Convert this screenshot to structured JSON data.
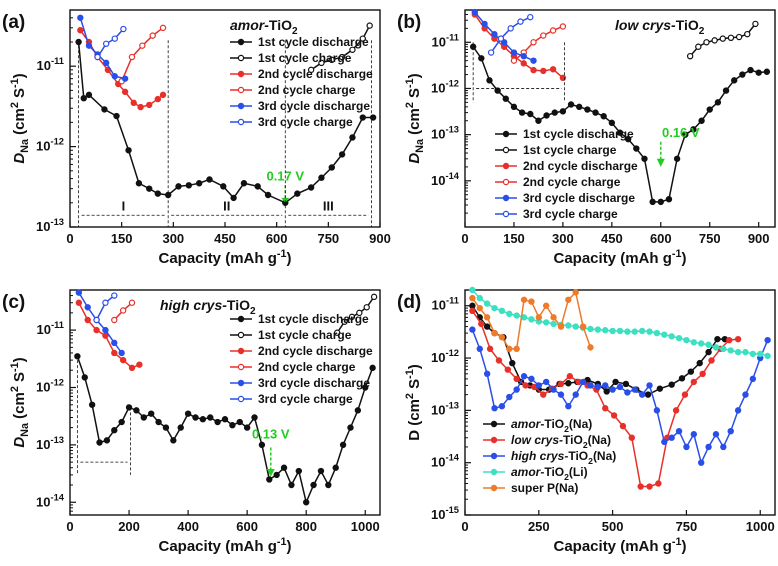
{
  "chart_data": [
    {
      "type": "line",
      "panel_label": "(a)",
      "title": "amor-TiO2",
      "xlabel": "Capacity (mAh g-1)",
      "ylabel": "DNa (cm2 S-1)",
      "xlim": [
        0,
        900
      ],
      "ylim": [
        1e-13,
        5e-11
      ],
      "yscale": "log",
      "xticks": [
        "0",
        "150",
        "300",
        "450",
        "600",
        "750",
        "900"
      ],
      "yticks": [
        "10-13",
        "10-12",
        "10-11"
      ],
      "legend_position": "top-right",
      "annotations": [
        "0.17 V",
        "I",
        "II",
        "III"
      ],
      "series": [
        {
          "name": "1st cycle discharge",
          "color": "#111111",
          "fill": "#111111",
          "x": [
            25,
            40,
            55,
            100,
            135,
            170,
            200,
            230,
            255,
            285,
            315,
            345,
            375,
            405,
            445,
            475,
            505,
            545,
            575,
            625,
            660,
            700,
            730,
            760,
            790,
            820,
            850,
            880
          ],
          "y": [
            2e-11,
            4e-12,
            4.4e-12,
            2.9e-12,
            2.4e-12,
            9e-13,
            3.5e-13,
            3e-13,
            2.6e-13,
            2.5e-13,
            3.2e-13,
            3.3e-13,
            3.5e-13,
            3.9e-13,
            3.2e-13,
            2.3e-13,
            3.5e-13,
            3.2e-13,
            2.5e-13,
            2e-13,
            2.6e-13,
            3.1e-13,
            4.1e-13,
            5.5e-13,
            8e-13,
            1.3e-12,
            2.3e-12,
            2.3e-12
          ]
        },
        {
          "name": "1st cycle charge",
          "color": "#111111",
          "fill": "#ffffff",
          "x": [
            700,
            730,
            760,
            790,
            820,
            850,
            870
          ],
          "y": [
            9e-12,
            1.1e-11,
            1.2e-11,
            1.3e-11,
            1.6e-11,
            2.2e-11,
            3.2e-11
          ]
        },
        {
          "name": "2nd cycle discharge",
          "color": "#e8302a",
          "fill": "#e8302a",
          "x": [
            30,
            55,
            80,
            110,
            140,
            160,
            185,
            205,
            230,
            255,
            270
          ],
          "y": [
            2.8e-11,
            2e-11,
            1.3e-11,
            9e-12,
            6e-12,
            4.8e-12,
            3.5e-12,
            3.1e-12,
            3.3e-12,
            3.9e-12,
            4.4e-12
          ]
        },
        {
          "name": "2nd cycle charge",
          "color": "#e8302a",
          "fill": "#ffffff",
          "x": [
            150,
            180,
            210,
            240,
            270
          ],
          "y": [
            6.5e-12,
            1.3e-11,
            1.8e-11,
            2.4e-11,
            3e-11
          ]
        },
        {
          "name": "3rd cycle discharge",
          "color": "#2a4ee8",
          "fill": "#2a4ee8",
          "x": [
            30,
            55,
            80,
            105,
            130,
            160
          ],
          "y": [
            4e-11,
            1.8e-11,
            1.4e-11,
            1.1e-11,
            7.5e-12,
            7e-12
          ]
        },
        {
          "name": "3rd cycle charge",
          "color": "#2a4ee8",
          "fill": "#ffffff",
          "x": [
            80,
            105,
            130,
            155
          ],
          "y": [
            1.3e-11,
            1.9e-11,
            2.2e-11,
            2.9e-11
          ]
        }
      ]
    },
    {
      "type": "line",
      "panel_label": "(b)",
      "title": "low crys-TiO2",
      "xlabel": "Capacity (mAh g-1)",
      "ylabel": "DNa (cm2 S-1)",
      "xlim": [
        0,
        950
      ],
      "ylim": [
        1e-15,
        5e-11
      ],
      "yscale": "log",
      "xticks": [
        "0",
        "150",
        "300",
        "450",
        "600",
        "750",
        "900"
      ],
      "yticks": [
        "10-14",
        "10-13",
        "10-12",
        "10-11"
      ],
      "legend_position": "bottom-left",
      "annotations": [
        "0.16 V"
      ],
      "series": [
        {
          "name": "1st cycle discharge",
          "color": "#111111",
          "fill": "#111111",
          "x": [
            25,
            50,
            75,
            100,
            125,
            150,
            175,
            200,
            225,
            250,
            275,
            300,
            325,
            350,
            375,
            400,
            425,
            450,
            475,
            500,
            525,
            550,
            575,
            600,
            625,
            650,
            675,
            700,
            725,
            750,
            775,
            800,
            825,
            850,
            875,
            900,
            925
          ],
          "y": [
            8e-12,
            4.5e-12,
            1.5e-12,
            9e-13,
            6e-13,
            4e-13,
            3e-13,
            2.8e-13,
            2e-13,
            2.6e-13,
            3e-13,
            3.2e-13,
            4.5e-13,
            4e-13,
            3.5e-13,
            3e-13,
            2.5e-13,
            1.8e-13,
            1.1e-13,
            8e-14,
            5e-14,
            3e-14,
            3.5e-15,
            3.5e-15,
            4e-15,
            3e-14,
            1e-13,
            1.3e-13,
            2e-13,
            3.5e-13,
            5e-13,
            9e-13,
            1.5e-12,
            2e-12,
            2.5e-12,
            2.2e-12,
            2.3e-12
          ]
        },
        {
          "name": "1st cycle charge",
          "color": "#111111",
          "fill": "#ffffff",
          "x": [
            690,
            715,
            740,
            765,
            790,
            815,
            840,
            865,
            890
          ],
          "y": [
            5e-12,
            8e-12,
            1e-11,
            1.1e-11,
            1.2e-11,
            1.25e-11,
            1.3e-11,
            1.5e-11,
            2.5e-11
          ]
        },
        {
          "name": "2nd cycle discharge",
          "color": "#e8302a",
          "fill": "#e8302a",
          "x": [
            30,
            60,
            90,
            120,
            150,
            180,
            210,
            240,
            270,
            300
          ],
          "y": [
            4e-11,
            2e-11,
            1.2e-11,
            8e-12,
            5e-12,
            3.5e-12,
            2.5e-12,
            2.4e-12,
            2.6e-12,
            1.7e-12
          ]
        },
        {
          "name": "2nd cycle charge",
          "color": "#e8302a",
          "fill": "#ffffff",
          "x": [
            150,
            180,
            210,
            240,
            270,
            300
          ],
          "y": [
            4e-12,
            6e-12,
            1e-11,
            1.4e-11,
            1.8e-11,
            2.2e-11
          ]
        },
        {
          "name": "3rd cycle discharge",
          "color": "#2a4ee8",
          "fill": "#2a4ee8",
          "x": [
            30,
            60,
            90,
            120,
            150,
            180,
            210
          ],
          "y": [
            4.5e-11,
            2.5e-11,
            1.5e-11,
            1e-11,
            6e-12,
            5e-12,
            4e-12
          ]
        },
        {
          "name": "3rd cycle charge",
          "color": "#2a4ee8",
          "fill": "#ffffff",
          "x": [
            80,
            110,
            140,
            170,
            200
          ],
          "y": [
            6e-12,
            1.2e-11,
            2e-11,
            2.8e-11,
            3.5e-11
          ]
        }
      ]
    },
    {
      "type": "line",
      "panel_label": "(c)",
      "title": "high crys-TiO2",
      "xlabel": "Capacity (mAh g-1)",
      "ylabel": "DNa (cm2 S-1)",
      "xlim": [
        0,
        1050
      ],
      "ylim": [
        6e-15,
        5e-11
      ],
      "yscale": "log",
      "xticks": [
        "0",
        "200",
        "400",
        "600",
        "800",
        "1000"
      ],
      "yticks": [
        "10-14",
        "10-13",
        "10-12",
        "10-11"
      ],
      "legend_position": "top-right",
      "annotations": [
        "0.13 V"
      ],
      "series": [
        {
          "name": "1st cycle discharge",
          "color": "#111111",
          "fill": "#111111",
          "x": [
            25,
            50,
            75,
            100,
            125,
            150,
            175,
            200,
            225,
            250,
            275,
            300,
            325,
            350,
            375,
            400,
            425,
            450,
            475,
            500,
            525,
            550,
            575,
            600,
            625,
            650,
            675,
            700,
            725,
            750,
            775,
            800,
            825,
            850,
            875,
            900,
            925,
            950,
            975,
            1000,
            1025
          ],
          "y": [
            3.5e-12,
            1.5e-12,
            5e-13,
            1.1e-13,
            1.2e-13,
            1.8e-13,
            2.5e-13,
            4.5e-13,
            4e-13,
            3e-13,
            3.5e-13,
            2.5e-13,
            2e-13,
            1.2e-13,
            2e-13,
            3.5e-13,
            3e-13,
            2.8e-13,
            3e-13,
            2.5e-13,
            2.8e-13,
            2.2e-13,
            2.5e-13,
            2e-13,
            3e-13,
            1e-13,
            2.5e-14,
            3e-14,
            4e-14,
            2e-14,
            3.5e-14,
            1e-14,
            2e-14,
            3.5e-14,
            2e-14,
            4e-14,
            1e-13,
            2e-13,
            4e-13,
            1e-12,
            2.2e-12
          ]
        },
        {
          "name": "1st cycle charge",
          "color": "#111111",
          "fill": "#ffffff",
          "x": [
            905,
            930,
            955,
            980,
            1005,
            1030
          ],
          "y": [
            9e-12,
            1.4e-11,
            1.7e-11,
            2e-11,
            2.5e-11,
            3.8e-11
          ]
        },
        {
          "name": "2nd cycle discharge",
          "color": "#e8302a",
          "fill": "#e8302a",
          "x": [
            30,
            60,
            90,
            120,
            150,
            180,
            210,
            235
          ],
          "y": [
            3e-11,
            1.5e-11,
            1e-11,
            8e-12,
            4e-12,
            3e-12,
            2.2e-12,
            2.5e-12
          ]
        },
        {
          "name": "2nd cycle charge",
          "color": "#e8302a",
          "fill": "#ffffff",
          "x": [
            150,
            180,
            210
          ],
          "y": [
            1.5e-11,
            2.2e-11,
            3e-11
          ]
        },
        {
          "name": "3rd cycle discharge",
          "color": "#2a4ee8",
          "fill": "#2a4ee8",
          "x": [
            30,
            60,
            90,
            120,
            150,
            175
          ],
          "y": [
            4.5e-11,
            2.5e-11,
            1.5e-11,
            1e-11,
            6e-12,
            4e-12
          ]
        },
        {
          "name": "3rd cycle charge",
          "color": "#2a4ee8",
          "fill": "#ffffff",
          "x": [
            90,
            120,
            150
          ],
          "y": [
            1.5e-11,
            3e-11,
            4e-11
          ]
        }
      ]
    },
    {
      "type": "line",
      "panel_label": "(d)",
      "title": "",
      "xlabel": "Capacity (mAh g-1)",
      "ylabel": "D (cm2 S-1)",
      "xlim": [
        0,
        1050
      ],
      "ylim": [
        1e-15,
        2e-11
      ],
      "yscale": "log",
      "xticks": [
        "0",
        "250",
        "500",
        "750",
        "1000"
      ],
      "yticks": [
        "10-15",
        "10-14",
        "10-13",
        "10-12",
        "10-11"
      ],
      "legend_position": "bottom-left",
      "annotations": [],
      "series": [
        {
          "name": "amor-TiO2(Na)",
          "color": "#111111",
          "fill": "#111111",
          "x": [
            25,
            50,
            75,
            100,
            130,
            160,
            190,
            220,
            250,
            285,
            320,
            350,
            380,
            415,
            450,
            480,
            510,
            545,
            580,
            620,
            660,
            700,
            735,
            765,
            795,
            825,
            855,
            880
          ],
          "y": [
            1e-11,
            6e-12,
            4e-12,
            3e-12,
            2.5e-12,
            8e-13,
            3.5e-13,
            3e-13,
            2.5e-13,
            2.5e-13,
            3.2e-13,
            3.3e-13,
            3.5e-13,
            3.8e-13,
            3.2e-13,
            2.3e-13,
            3.5e-13,
            3.2e-13,
            2.5e-13,
            2e-13,
            2.6e-13,
            3.1e-13,
            4.1e-13,
            5.5e-13,
            8e-13,
            1.3e-12,
            2.3e-12,
            2.3e-12
          ]
        },
        {
          "name": "low crys-TiO2(Na)",
          "color": "#e8302a",
          "fill": "#e8302a",
          "x": [
            25,
            55,
            85,
            115,
            145,
            175,
            205,
            235,
            265,
            295,
            325,
            355,
            385,
            415,
            445,
            475,
            505,
            535,
            565,
            595,
            625,
            655,
            685,
            715,
            745,
            775,
            805,
            835,
            865,
            895,
            925
          ],
          "y": [
            8e-12,
            4.5e-12,
            1.5e-12,
            9e-13,
            6e-13,
            4e-13,
            3e-13,
            2.8e-13,
            2e-13,
            2.6e-13,
            3.2e-13,
            4.5e-13,
            3.5e-13,
            3e-13,
            2.5e-13,
            1.1e-13,
            8e-14,
            5e-14,
            3e-14,
            3.5e-15,
            3.5e-15,
            4e-15,
            3e-14,
            1e-13,
            2e-13,
            3.5e-13,
            5e-13,
            9e-13,
            1.5e-12,
            2.2e-12,
            2.3e-12
          ]
        },
        {
          "name": "high crys-TiO2(Na)",
          "color": "#2a4ee8",
          "fill": "#2a4ee8",
          "x": [
            25,
            50,
            75,
            100,
            125,
            150,
            175,
            200,
            225,
            250,
            275,
            300,
            325,
            350,
            375,
            400,
            425,
            450,
            475,
            500,
            525,
            550,
            575,
            600,
            625,
            650,
            675,
            700,
            725,
            750,
            775,
            800,
            825,
            850,
            875,
            900,
            925,
            950,
            975,
            1000,
            1025
          ],
          "y": [
            3.5e-12,
            1.5e-12,
            5e-13,
            1.1e-13,
            1.2e-13,
            1.8e-13,
            2.5e-13,
            4.5e-13,
            4e-13,
            3e-13,
            3.5e-13,
            2.5e-13,
            2e-13,
            1.2e-13,
            2e-13,
            3.5e-13,
            3e-13,
            2.8e-13,
            3e-13,
            2.5e-13,
            2.8e-13,
            2.2e-13,
            2.5e-13,
            2e-13,
            3e-13,
            1e-13,
            2.5e-14,
            3e-14,
            4e-14,
            2e-14,
            3.5e-14,
            1e-14,
            2e-14,
            3.5e-14,
            2e-14,
            4e-14,
            1e-13,
            2e-13,
            4e-13,
            1e-12,
            2.2e-12
          ]
        },
        {
          "name": "amor-TiO2(Li)",
          "color": "#3de0c0",
          "fill": "#3de0c0",
          "x": [
            25,
            50,
            75,
            100,
            125,
            150,
            175,
            200,
            225,
            250,
            275,
            300,
            325,
            350,
            375,
            400,
            425,
            450,
            475,
            500,
            525,
            550,
            575,
            600,
            625,
            650,
            675,
            700,
            725,
            750,
            775,
            800,
            825,
            850,
            875,
            900,
            925,
            950,
            975,
            1000,
            1025
          ],
          "y": [
            2e-11,
            1.4e-11,
            1.1e-11,
            9e-12,
            8e-12,
            7e-12,
            6.5e-12,
            6e-12,
            5.5e-12,
            5e-12,
            4.8e-12,
            4.5e-12,
            4.3e-12,
            4.2e-12,
            4e-12,
            3.8e-12,
            3.6e-12,
            3.5e-12,
            3.4e-12,
            3.3e-12,
            3.3e-12,
            3.2e-12,
            3.2e-12,
            3.3e-12,
            3.2e-12,
            3e-12,
            2.8e-12,
            2.6e-12,
            2.4e-12,
            2.2e-12,
            2e-12,
            1.9e-12,
            1.8e-12,
            1.6e-12,
            1.5e-12,
            1.4e-12,
            1.3e-12,
            1.3e-12,
            1.2e-12,
            1.2e-12,
            1.1e-12
          ]
        },
        {
          "name": "super P(Na)",
          "color": "#ee7a2a",
          "fill": "#ee7a2a",
          "x": [
            25,
            50,
            75,
            100,
            125,
            150,
            175,
            200,
            225,
            250,
            275,
            300,
            325,
            350,
            375,
            400,
            425
          ],
          "y": [
            1.4e-11,
            9e-12,
            6e-12,
            3e-12,
            2.5e-12,
            1.5e-12,
            1.5e-12,
            1.3e-11,
            1.2e-11,
            6e-12,
            1e-11,
            6e-12,
            4e-12,
            1.3e-11,
            1.8e-11,
            4e-12,
            1.6e-12
          ]
        }
      ]
    }
  ]
}
